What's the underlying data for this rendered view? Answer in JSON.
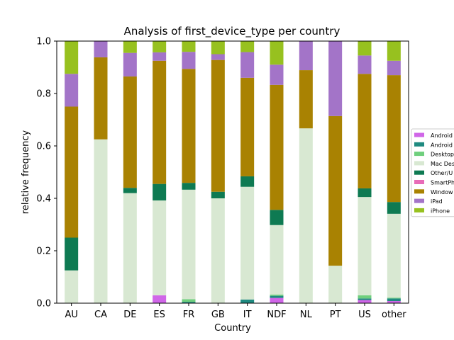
{
  "chart_data": {
    "type": "bar",
    "stacked": true,
    "title": "Analysis of first_device_type per country",
    "xlabel": "Country",
    "ylabel": "relative frequency",
    "ylim": [
      0,
      1.0
    ],
    "yticks": [
      "0.0",
      "0.2",
      "0.4",
      "0.6",
      "0.8",
      "1.0"
    ],
    "grid": false,
    "legend_position": "right",
    "categories": [
      "AU",
      "CA",
      "DE",
      "ES",
      "FR",
      "GB",
      "IT",
      "NDF",
      "NL",
      "PT",
      "US",
      "other"
    ],
    "series": [
      {
        "name": "Android",
        "color": "#d066e8",
        "values": [
          0,
          0,
          0,
          0.03,
          0,
          0,
          0,
          0.02,
          0,
          0,
          0.012,
          0.008
        ]
      },
      {
        "name": "Android",
        "color": "#1f8a80",
        "values": [
          0,
          0,
          0,
          0,
          0.005,
          0,
          0.014,
          0.008,
          0,
          0,
          0.006,
          0.01
        ]
      },
      {
        "name": "Desktop",
        "color": "#6fcf7d",
        "values": [
          0,
          0,
          0,
          0,
          0.01,
          0,
          0,
          0.005,
          0,
          0,
          0.012,
          0.003
        ]
      },
      {
        "name": "Mac Des",
        "color": "#d8e8d2",
        "values": [
          0.125,
          0.625,
          0.42,
          0.362,
          0.418,
          0.4,
          0.43,
          0.265,
          0.667,
          0.143,
          0.375,
          0.32
        ]
      },
      {
        "name": "Other/U",
        "color": "#0e7a52",
        "values": [
          0.125,
          0,
          0.02,
          0.063,
          0.026,
          0.025,
          0.04,
          0.058,
          0,
          0,
          0.033,
          0.045
        ]
      },
      {
        "name": "SmartPh",
        "color": "#e86bb8",
        "values": [
          0,
          0,
          0,
          0,
          0,
          0,
          0,
          0,
          0,
          0,
          0,
          0
        ]
      },
      {
        "name": "Window",
        "color": "#a98202",
        "values": [
          0.5,
          0.313,
          0.425,
          0.47,
          0.435,
          0.503,
          0.376,
          0.477,
          0.222,
          0.571,
          0.437,
          0.484
        ]
      },
      {
        "name": "iPad",
        "color": "#a374c8",
        "values": [
          0.125,
          0.062,
          0.09,
          0.032,
          0.065,
          0.022,
          0.098,
          0.077,
          0.111,
          0.286,
          0.07,
          0.055
        ]
      },
      {
        "name": "iPhone",
        "color": "#97c11f",
        "values": [
          0.125,
          0,
          0.045,
          0.043,
          0.041,
          0.05,
          0.042,
          0.09,
          0,
          0,
          0.055,
          0.075
        ]
      }
    ]
  }
}
